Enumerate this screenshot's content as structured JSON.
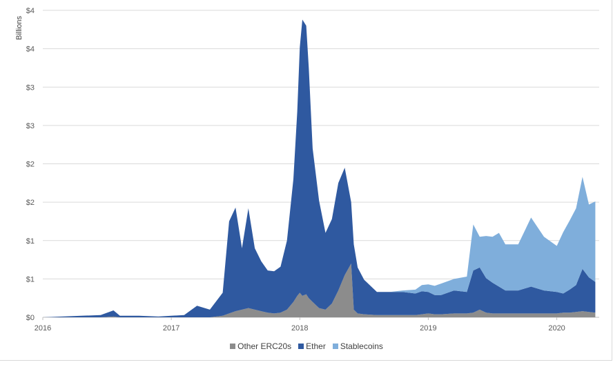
{
  "chart_data": {
    "type": "area",
    "stacked": true,
    "title": "",
    "xlabel": "",
    "ylabel": "Billions",
    "ylim": [
      0,
      4
    ],
    "y_ticks": [
      {
        "value": 0,
        "label": "$0"
      },
      {
        "value": 0.5,
        "label": "$1"
      },
      {
        "value": 1.0,
        "label": "$1"
      },
      {
        "value": 1.5,
        "label": "$2"
      },
      {
        "value": 2.0,
        "label": "$2"
      },
      {
        "value": 2.5,
        "label": "$3"
      },
      {
        "value": 3.0,
        "label": "$3"
      },
      {
        "value": 3.5,
        "label": "$4"
      },
      {
        "value": 4.0,
        "label": "$4"
      }
    ],
    "x_ticks": [
      "2016",
      "2017",
      "2018",
      "2019",
      "2020"
    ],
    "xlim": [
      2016.0,
      2020.33
    ],
    "grid": "horizontal",
    "legend_position": "bottom",
    "x": [
      2016.0,
      2016.15,
      2016.3,
      2016.45,
      2016.55,
      2016.6,
      2016.75,
      2016.9,
      2017.0,
      2017.1,
      2017.2,
      2017.3,
      2017.35,
      2017.4,
      2017.45,
      2017.5,
      2017.55,
      2017.6,
      2017.65,
      2017.7,
      2017.75,
      2017.8,
      2017.85,
      2017.9,
      2017.95,
      2017.98,
      2018.0,
      2018.02,
      2018.05,
      2018.07,
      2018.1,
      2018.15,
      2018.2,
      2018.25,
      2018.3,
      2018.35,
      2018.4,
      2018.42,
      2018.45,
      2018.5,
      2018.6,
      2018.7,
      2018.8,
      2018.9,
      2018.95,
      2019.0,
      2019.05,
      2019.1,
      2019.2,
      2019.3,
      2019.35,
      2019.4,
      2019.45,
      2019.5,
      2019.55,
      2019.6,
      2019.7,
      2019.8,
      2019.9,
      2020.0,
      2020.05,
      2020.1,
      2020.15,
      2020.2,
      2020.25,
      2020.3
    ],
    "series": [
      {
        "name": "Other ERC20s",
        "color": "#8c8c8c",
        "values": [
          0,
          0,
          0,
          0,
          0.01,
          0,
          0,
          0,
          0,
          0,
          0,
          0,
          0.01,
          0.02,
          0.05,
          0.08,
          0.1,
          0.12,
          0.1,
          0.08,
          0.06,
          0.05,
          0.06,
          0.1,
          0.2,
          0.28,
          0.32,
          0.28,
          0.3,
          0.25,
          0.2,
          0.12,
          0.1,
          0.18,
          0.35,
          0.55,
          0.7,
          0.1,
          0.05,
          0.04,
          0.03,
          0.03,
          0.03,
          0.03,
          0.04,
          0.05,
          0.04,
          0.04,
          0.05,
          0.05,
          0.06,
          0.1,
          0.06,
          0.05,
          0.05,
          0.05,
          0.05,
          0.05,
          0.05,
          0.05,
          0.06,
          0.06,
          0.07,
          0.08,
          0.07,
          0.06
        ]
      },
      {
        "name": "Ether",
        "color": "#2f59a0",
        "values": [
          0.0,
          0.01,
          0.02,
          0.03,
          0.08,
          0.02,
          0.02,
          0.01,
          0.02,
          0.03,
          0.15,
          0.1,
          0.2,
          0.3,
          1.2,
          1.35,
          0.8,
          1.3,
          0.8,
          0.65,
          0.55,
          0.55,
          0.6,
          0.9,
          1.6,
          2.4,
          3.2,
          3.6,
          3.5,
          3.0,
          2.0,
          1.4,
          1.0,
          1.1,
          1.4,
          1.4,
          0.8,
          0.85,
          0.6,
          0.45,
          0.3,
          0.3,
          0.3,
          0.28,
          0.3,
          0.28,
          0.25,
          0.25,
          0.3,
          0.28,
          0.55,
          0.55,
          0.45,
          0.4,
          0.35,
          0.3,
          0.3,
          0.35,
          0.3,
          0.28,
          0.25,
          0.3,
          0.35,
          0.55,
          0.45,
          0.4
        ]
      },
      {
        "name": "Stablecoins",
        "color": "#7faedb",
        "values": [
          0,
          0,
          0,
          0,
          0,
          0,
          0,
          0,
          0,
          0,
          0,
          0,
          0,
          0,
          0,
          0,
          0,
          0,
          0,
          0,
          0,
          0,
          0,
          0,
          0,
          0,
          0,
          0,
          0,
          0,
          0,
          0,
          0,
          0,
          0,
          0,
          0,
          0,
          0,
          0,
          0,
          0,
          0.02,
          0.05,
          0.08,
          0.1,
          0.12,
          0.15,
          0.15,
          0.2,
          0.6,
          0.4,
          0.55,
          0.6,
          0.7,
          0.6,
          0.6,
          0.9,
          0.7,
          0.6,
          0.8,
          0.9,
          1.0,
          1.2,
          0.95,
          1.05
        ]
      }
    ]
  }
}
